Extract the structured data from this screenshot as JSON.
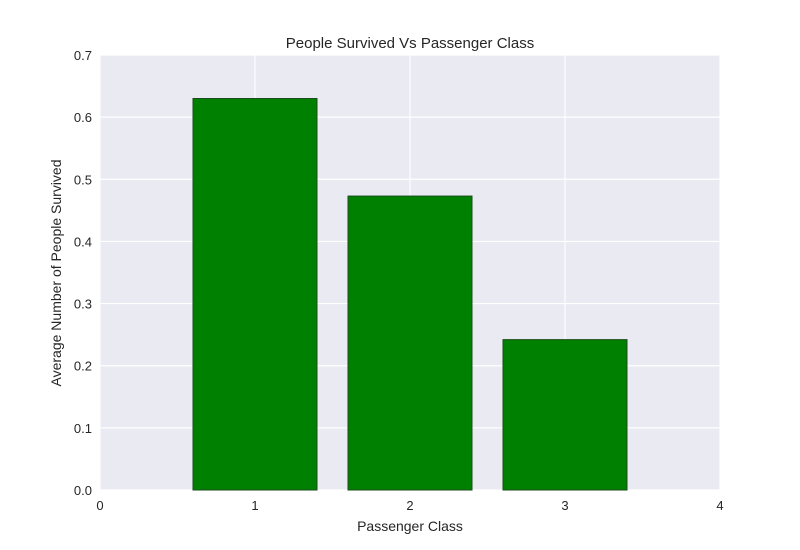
{
  "chart_data": {
    "type": "bar",
    "title": "People Survived Vs Passenger Class",
    "xlabel": "Passenger Class",
    "ylabel": "Average Number of People Survived",
    "x": [
      1,
      2,
      3
    ],
    "values": [
      0.63,
      0.473,
      0.242
    ],
    "bar_width": 0.8,
    "xlim": [
      0,
      4
    ],
    "ylim": [
      0,
      0.7
    ],
    "xticks": [
      0,
      1,
      2,
      3,
      4
    ],
    "xtick_labels": [
      "0",
      "1",
      "2",
      "3",
      "4"
    ],
    "yticks": [
      0.0,
      0.1,
      0.2,
      0.3,
      0.4,
      0.5,
      0.6,
      0.7
    ],
    "ytick_labels": [
      "0.0",
      "0.1",
      "0.2",
      "0.3",
      "0.4",
      "0.5",
      "0.6",
      "0.7"
    ],
    "grid": true,
    "colors": {
      "bar_fill": "#008000",
      "bar_edge": "#1a4d1a",
      "plot_background": "#eaeaf2",
      "grid": "#ffffff"
    }
  }
}
